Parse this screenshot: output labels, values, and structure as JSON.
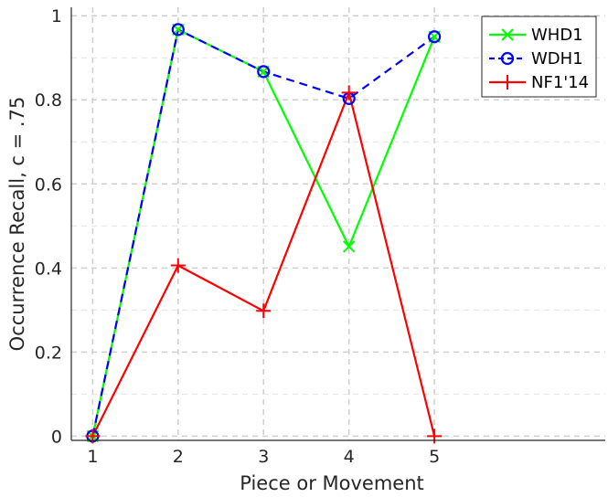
{
  "chart_data": {
    "type": "line",
    "xlabel": "Piece or Movement",
    "ylabel": "Occurrence Recall, c = .75",
    "x": [
      1,
      2,
      3,
      4,
      5
    ],
    "x_ticks": [
      "1",
      "2",
      "3",
      "4",
      "5"
    ],
    "y_ticks": [
      "0",
      "0.2",
      "0.4",
      "0.6",
      "0.8",
      "1"
    ],
    "xlim": [
      0.75,
      7
    ],
    "ylim": [
      -0.01,
      1.02
    ],
    "grid": true,
    "legend_position": "top-right",
    "series": [
      {
        "name": "WHD1",
        "color": "#00ff00",
        "marker": "x",
        "dash": "solid",
        "values": [
          0.0,
          0.967,
          0.867,
          0.451,
          0.95
        ]
      },
      {
        "name": "WDH1",
        "color": "#0000ff",
        "marker": "circle",
        "dash": "dashed",
        "values": [
          0.0,
          0.967,
          0.867,
          0.803,
          0.95
        ]
      },
      {
        "name": "NF1'14",
        "color": "#ff0000",
        "marker": "plus",
        "dash": "solid",
        "values": [
          0.0,
          0.406,
          0.298,
          0.817,
          0.0
        ]
      }
    ]
  }
}
